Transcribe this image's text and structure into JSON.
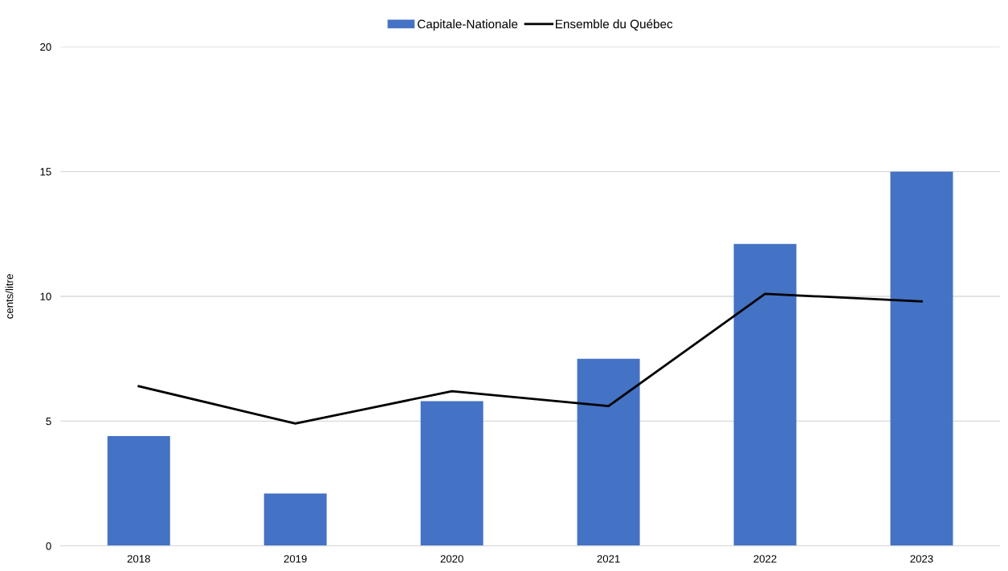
{
  "chart_data": {
    "type": "bar",
    "ylabel": "cents/litre",
    "categories": [
      "2018",
      "2019",
      "2020",
      "2021",
      "2022",
      "2023"
    ],
    "series": [
      {
        "name": "Capitale-Nationale",
        "color": "#4472c4",
        "values": [
          4.4,
          2.1,
          5.8,
          7.5,
          12.1,
          15.0
        ]
      },
      {
        "name": "Ensemble du Québec",
        "type": "line",
        "color": "#000000",
        "values": [
          6.4,
          4.9,
          6.2,
          5.6,
          10.1,
          9.8
        ]
      }
    ],
    "ylim": [
      0,
      20
    ],
    "yticks": [
      0,
      5,
      10,
      15,
      20
    ],
    "grid": "y",
    "legend": "top",
    "marker": "none",
    "line_style": "solid"
  }
}
